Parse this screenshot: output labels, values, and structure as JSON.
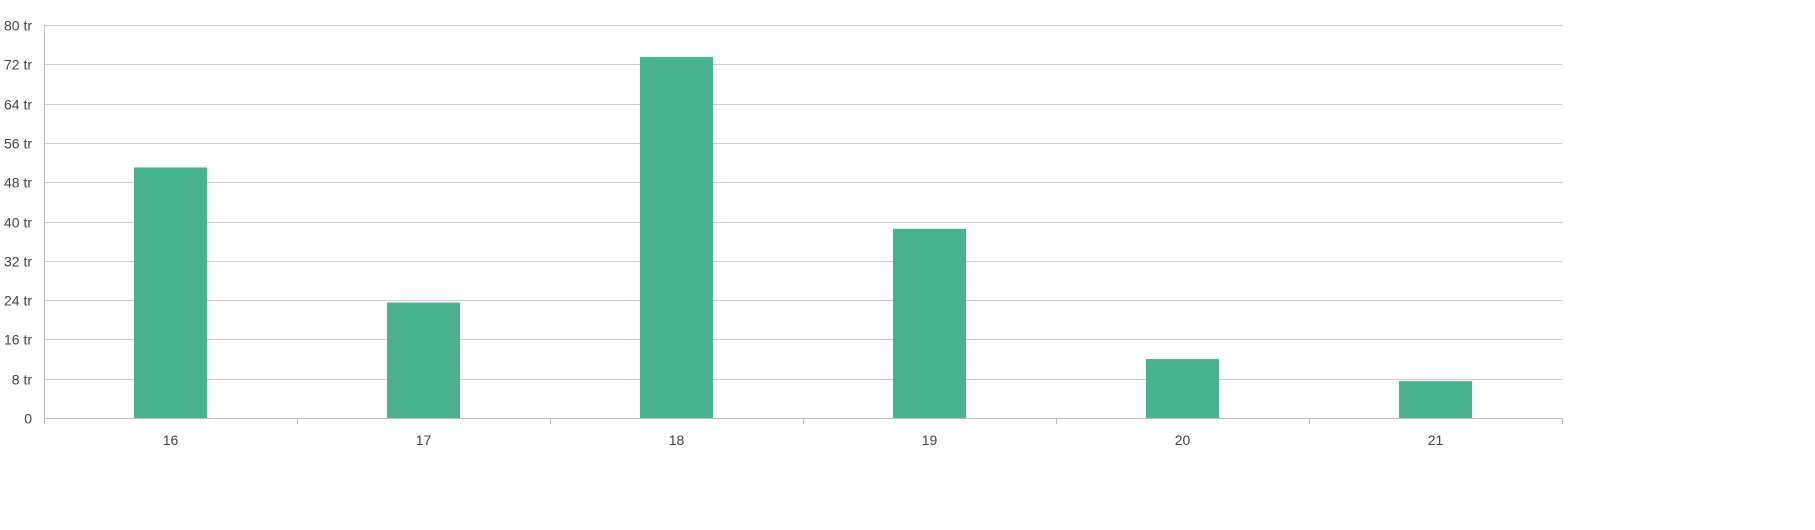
{
  "chart_data": {
    "type": "bar",
    "categories": [
      "16",
      "17",
      "18",
      "19",
      "20",
      "21"
    ],
    "values": [
      51,
      23.5,
      73.5,
      38.5,
      12,
      7.5
    ],
    "ylim": [
      0,
      80
    ],
    "yticks": [
      0,
      8,
      16,
      24,
      32,
      40,
      48,
      56,
      64,
      72,
      80
    ],
    "ytick_labels": [
      "0",
      "8 tr",
      "16 tr",
      "24 tr",
      "32 tr",
      "40 tr",
      "48 tr",
      "56 tr",
      "64 tr",
      "72 tr",
      "80 tr"
    ],
    "grid": true,
    "bar_color": "#4bb28f",
    "grid_color": "#cfcfcf",
    "axis_color": "#bdbdbd",
    "text_color": "#444444"
  }
}
